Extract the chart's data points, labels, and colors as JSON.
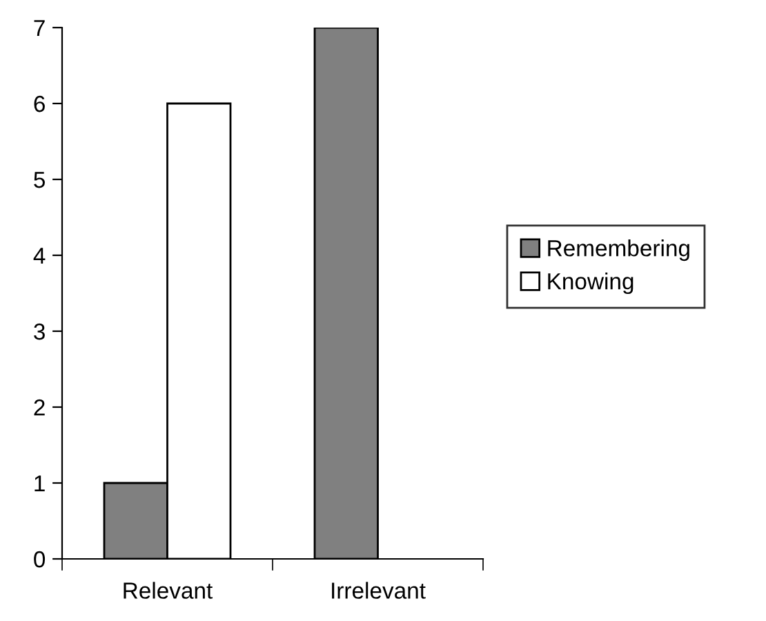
{
  "chart_data": {
    "type": "bar",
    "categories": [
      "Relevant",
      "Irrelevant"
    ],
    "series": [
      {
        "name": "Remembering",
        "color": "#808080",
        "values": [
          1,
          7
        ]
      },
      {
        "name": "Knowing",
        "color": "#ffffff",
        "values": [
          6,
          null
        ]
      }
    ],
    "ylim": [
      0,
      7
    ],
    "yticks": [
      0,
      1,
      2,
      3,
      4,
      5,
      6,
      7
    ],
    "grid": false,
    "legend": "right"
  }
}
